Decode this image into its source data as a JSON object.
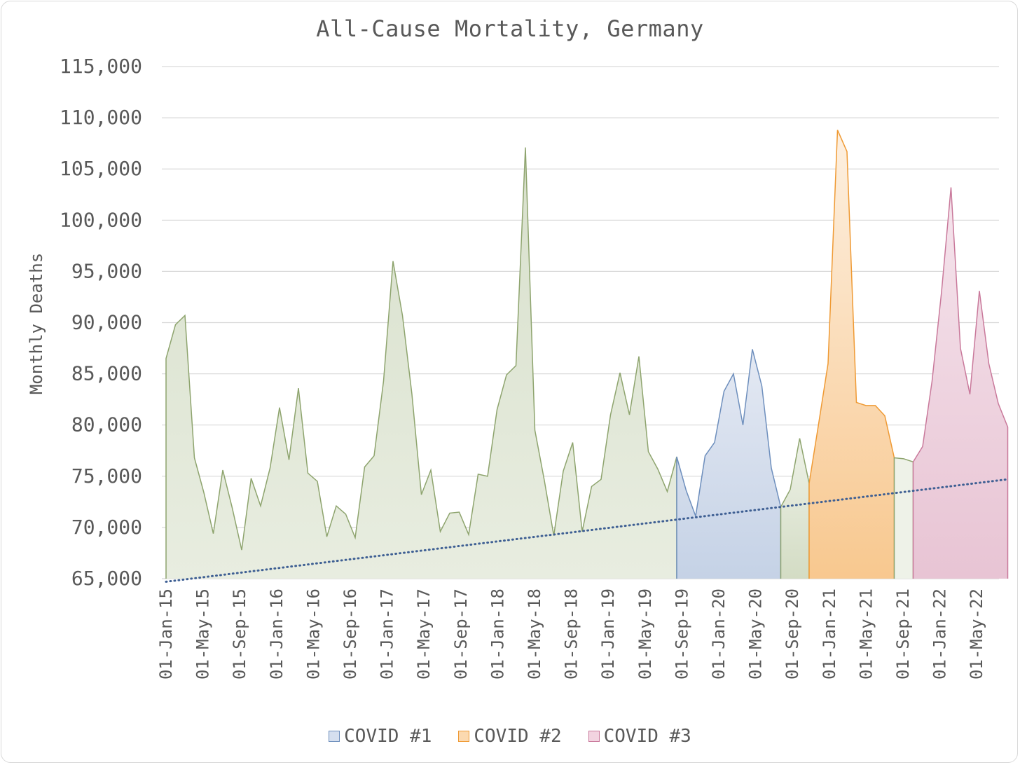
{
  "chart_data": {
    "type": "area",
    "title": "All-Cause Mortality, Germany",
    "ylabel": "Monthly Deaths",
    "xlabel": "",
    "ylim": [
      65000,
      115000
    ],
    "yticks": [
      "65,000",
      "70,000",
      "75,000",
      "80,000",
      "85,000",
      "90,000",
      "95,000",
      "100,000",
      "105,000",
      "110,000",
      "115,000"
    ],
    "ytick_values": [
      65000,
      70000,
      75000,
      80000,
      85000,
      90000,
      95000,
      100000,
      105000,
      110000,
      115000
    ],
    "xticks": [
      "01-Jan-15",
      "01-May-15",
      "01-Sep-15",
      "01-Jan-16",
      "01-May-16",
      "01-Sep-16",
      "01-Jan-17",
      "01-May-17",
      "01-Sep-17",
      "01-Jan-18",
      "01-May-18",
      "01-Sep-18",
      "01-Jan-19",
      "01-May-19",
      "01-Sep-19",
      "01-Jan-20",
      "01-May-20",
      "01-Sep-20",
      "01-Jan-21",
      "01-May-21",
      "01-Sep-21",
      "01-Jan-22",
      "01-May-22"
    ],
    "x_start": "2015-01-01",
    "x_step": "2 weeks",
    "grid": true,
    "legend_position": "bottom",
    "values": [
      86500,
      89800,
      90700,
      76800,
      73400,
      69400,
      75600,
      71900,
      67800,
      74800,
      72100,
      75800,
      81700,
      76600,
      83600,
      75300,
      74500,
      69100,
      72100,
      71300,
      69000,
      75900,
      77000,
      84300,
      96000,
      90700,
      83000,
      73200,
      75600,
      69600,
      71400,
      71500,
      69300,
      75200,
      75000,
      81500,
      84900,
      85800,
      107100,
      79500,
      74600,
      69200,
      75500,
      78300,
      69600,
      74000,
      74700,
      81000,
      85100,
      81000,
      86700,
      77400,
      75700,
      73500,
      76900,
      73600,
      71100,
      77000,
      78300,
      83300,
      85000,
      80000,
      87400,
      83800,
      75800,
      72000,
      73700,
      78700,
      74300,
      80100,
      86000,
      108800,
      106700,
      82200,
      81900,
      81900,
      80900,
      76800,
      76700,
      76400,
      77900,
      84300,
      93000,
      103200,
      87500,
      83000,
      93100,
      86000,
      82100,
      79800
    ],
    "series": [
      {
        "name": "",
        "start": 0,
        "end": 54,
        "color": "#8ea46e",
        "fill_top": "#d8e0cc",
        "fill_bottom": "#e8ede0"
      },
      {
        "name": "COVID #1",
        "start": 54,
        "end": 65,
        "color": "#6e8fbd",
        "fill_top": "#e4e9f3",
        "fill_bottom": "#c5d2e6"
      },
      {
        "name": "",
        "start": 65,
        "end": 68,
        "color": "#8ea46e",
        "fill_top": "#eef2e8",
        "fill_bottom": "#d3dcc4"
      },
      {
        "name": "COVID #2",
        "start": 68,
        "end": 77,
        "color": "#ef9a34",
        "fill_top": "#fdf0e1",
        "fill_bottom": "#f8c88f"
      },
      {
        "name": "",
        "start": 77,
        "end": 79,
        "color": "#8ea46e",
        "fill_top": "#eef2e8",
        "fill_bottom": "#eef2e8"
      },
      {
        "name": "COVID #3",
        "start": 79,
        "end": 89,
        "color": "#c9799b",
        "fill_top": "#f5e4ec",
        "fill_bottom": "#e8c4d4"
      }
    ],
    "trendline": {
      "start_value": 64700,
      "end_value": 74700,
      "color": "#3e5f93",
      "style": "dotted"
    },
    "legend": [
      {
        "label": "COVID #1",
        "fill": "#d5dfef",
        "stroke": "#6e8fbd"
      },
      {
        "label": "COVID #2",
        "fill": "#fbd9b0",
        "stroke": "#ef9a34"
      },
      {
        "label": "COVID #3",
        "fill": "#f2d3e0",
        "stroke": "#c9799b"
      }
    ]
  }
}
